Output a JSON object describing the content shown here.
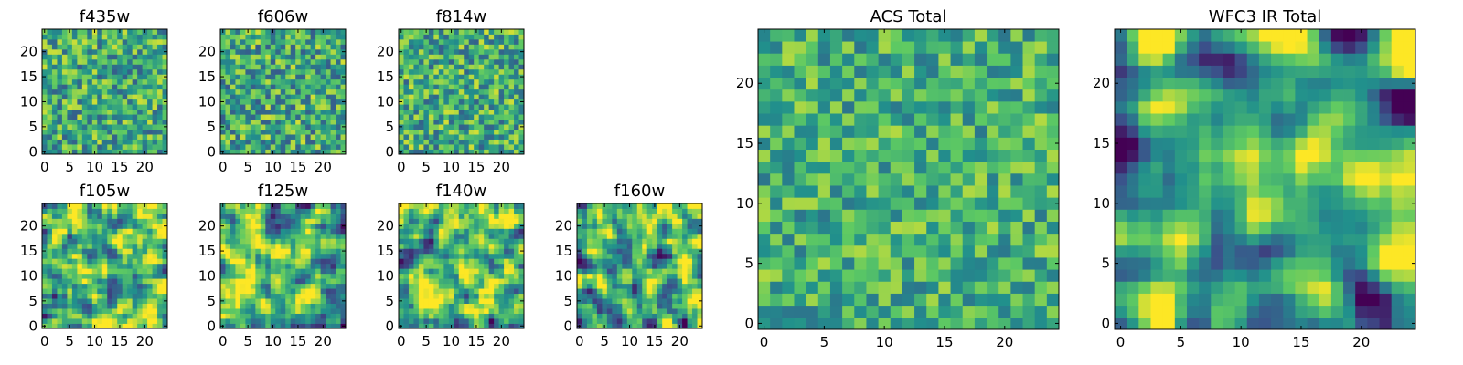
{
  "colormap": {
    "name": "viridis",
    "stops": [
      "#440154",
      "#3b528b",
      "#21908c",
      "#5dc963",
      "#fde725"
    ]
  },
  "chart_data": [
    {
      "type": "heatmap",
      "title": "f435w",
      "grid": [
        25,
        25
      ],
      "xlim": [
        -0.5,
        24.5
      ],
      "ylim": [
        -0.5,
        24.5
      ],
      "xticks": [
        0,
        5,
        10,
        15,
        20
      ],
      "yticks": [
        0,
        5,
        10,
        15,
        20
      ],
      "tick_labels": [
        "0",
        "5",
        "10",
        "15",
        "20"
      ],
      "texture": "random-noise",
      "mean_level": 0.62,
      "spread": 0.36,
      "smoothing": 0,
      "seed": 11
    },
    {
      "type": "heatmap",
      "title": "f606w",
      "grid": [
        25,
        25
      ],
      "xlim": [
        -0.5,
        24.5
      ],
      "ylim": [
        -0.5,
        24.5
      ],
      "xticks": [
        0,
        5,
        10,
        15,
        20
      ],
      "yticks": [
        0,
        5,
        10,
        15,
        20
      ],
      "tick_labels": [
        "0",
        "5",
        "10",
        "15",
        "20"
      ],
      "texture": "random-noise",
      "mean_level": 0.6,
      "spread": 0.38,
      "smoothing": 0,
      "seed": 23
    },
    {
      "type": "heatmap",
      "title": "f814w",
      "grid": [
        25,
        25
      ],
      "xlim": [
        -0.5,
        24.5
      ],
      "ylim": [
        -0.5,
        24.5
      ],
      "xticks": [
        0,
        5,
        10,
        15,
        20
      ],
      "yticks": [
        0,
        5,
        10,
        15,
        20
      ],
      "tick_labels": [
        "0",
        "5",
        "10",
        "15",
        "20"
      ],
      "texture": "random-noise",
      "mean_level": 0.62,
      "spread": 0.37,
      "smoothing": 0,
      "seed": 37
    },
    {
      "type": "heatmap",
      "title": "f105w",
      "grid": [
        25,
        25
      ],
      "xlim": [
        -0.5,
        24.5
      ],
      "ylim": [
        -0.5,
        24.5
      ],
      "xticks": [
        0,
        5,
        10,
        15,
        20
      ],
      "yticks": [
        0,
        5,
        10,
        15,
        20
      ],
      "tick_labels": [
        "0",
        "5",
        "10",
        "15",
        "20"
      ],
      "texture": "smoothed-noise",
      "mean_level": 0.68,
      "spread": 0.45,
      "smoothing": 1,
      "seed": 41
    },
    {
      "type": "heatmap",
      "title": "f125w",
      "grid": [
        25,
        25
      ],
      "xlim": [
        -0.5,
        24.5
      ],
      "ylim": [
        -0.5,
        24.5
      ],
      "xticks": [
        0,
        5,
        10,
        15,
        20
      ],
      "yticks": [
        0,
        5,
        10,
        15,
        20
      ],
      "tick_labels": [
        "0",
        "5",
        "10",
        "15",
        "20"
      ],
      "texture": "smoothed-noise",
      "mean_level": 0.65,
      "spread": 0.48,
      "smoothing": 1,
      "seed": 53
    },
    {
      "type": "heatmap",
      "title": "f140w",
      "grid": [
        25,
        25
      ],
      "xlim": [
        -0.5,
        24.5
      ],
      "ylim": [
        -0.5,
        24.5
      ],
      "xticks": [
        0,
        5,
        10,
        15,
        20
      ],
      "yticks": [
        0,
        5,
        10,
        15,
        20
      ],
      "tick_labels": [
        "0",
        "5",
        "10",
        "15",
        "20"
      ],
      "texture": "smoothed-noise",
      "mean_level": 0.68,
      "spread": 0.46,
      "smoothing": 1,
      "seed": 67
    },
    {
      "type": "heatmap",
      "title": "f160w",
      "grid": [
        25,
        25
      ],
      "xlim": [
        -0.5,
        24.5
      ],
      "ylim": [
        -0.5,
        24.5
      ],
      "xticks": [
        0,
        5,
        10,
        15,
        20
      ],
      "yticks": [
        0,
        5,
        10,
        15,
        20
      ],
      "tick_labels": [
        "0",
        "5",
        "10",
        "15",
        "20"
      ],
      "texture": "smoothed-noise",
      "mean_level": 0.63,
      "spread": 0.48,
      "smoothing": 1,
      "seed": 79
    },
    {
      "type": "heatmap",
      "title": "ACS Total",
      "grid": [
        25,
        25
      ],
      "xlim": [
        -0.5,
        24.5
      ],
      "ylim": [
        -0.5,
        24.5
      ],
      "xticks": [
        0,
        5,
        10,
        15,
        20
      ],
      "yticks": [
        0,
        5,
        10,
        15,
        20
      ],
      "tick_labels": [
        "0",
        "5",
        "10",
        "15",
        "20"
      ],
      "texture": "random-noise",
      "mean_level": 0.64,
      "spread": 0.3,
      "smoothing": 0,
      "seed": 97
    },
    {
      "type": "heatmap",
      "title": "WFC3 IR Total",
      "grid": [
        25,
        25
      ],
      "xlim": [
        -0.5,
        24.5
      ],
      "ylim": [
        -0.5,
        24.5
      ],
      "xticks": [
        0,
        5,
        10,
        15,
        20
      ],
      "yticks": [
        0,
        5,
        10,
        15,
        20
      ],
      "tick_labels": [
        "0",
        "5",
        "10",
        "15",
        "20"
      ],
      "texture": "smoothed-noise",
      "mean_level": 0.6,
      "spread": 0.5,
      "smoothing": 2,
      "seed": 113
    }
  ]
}
